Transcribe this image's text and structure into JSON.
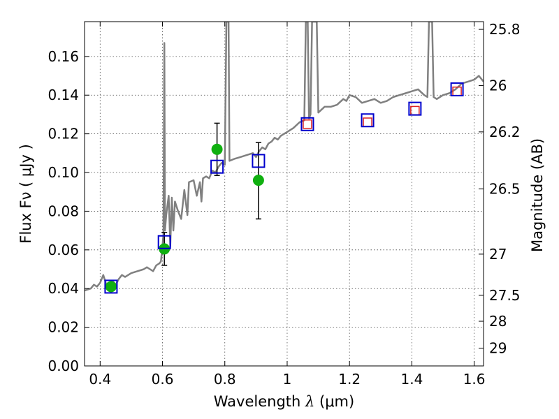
{
  "chart_data": {
    "type": "scatter",
    "xlabel": "Wavelength  λ (μm)",
    "ylabel": "Flux  Fν  ( μJy )",
    "y2label": "Magnitude (AB)",
    "xlim": [
      0.35,
      1.63
    ],
    "ylim": [
      0.0,
      0.178
    ],
    "grid": true,
    "x_ticks": [
      0.4,
      0.6,
      0.8,
      1.0,
      1.2,
      1.4,
      1.6
    ],
    "x_tick_labels": [
      "0.4",
      "0.6",
      "0.8",
      "1",
      "1.2",
      "1.4",
      "1.6"
    ],
    "y_ticks": [
      0.0,
      0.02,
      0.04,
      0.06,
      0.08,
      0.1,
      0.12,
      0.14,
      0.16
    ],
    "y_tick_labels": [
      "0.00",
      "0.02",
      "0.04",
      "0.06",
      "0.08",
      "0.10",
      "0.12",
      "0.14",
      "0.16"
    ],
    "y2_ticks": [
      {
        "label": "25.8",
        "flux": 0.174
      },
      {
        "label": "26",
        "flux": 0.145
      },
      {
        "label": "26.2",
        "flux": 0.121
      },
      {
        "label": "26.5",
        "flux": 0.0915
      },
      {
        "label": "27",
        "flux": 0.0578
      },
      {
        "label": "27.5",
        "flux": 0.0365
      },
      {
        "label": "28",
        "flux": 0.0231
      },
      {
        "label": "29",
        "flux": 0.0092
      }
    ],
    "model_spectrum": {
      "color": "#808080",
      "points": [
        [
          0.35,
          0.039
        ],
        [
          0.37,
          0.04
        ],
        [
          0.38,
          0.042
        ],
        [
          0.39,
          0.041
        ],
        [
          0.4,
          0.043
        ],
        [
          0.41,
          0.047
        ],
        [
          0.42,
          0.042
        ],
        [
          0.43,
          0.043
        ],
        [
          0.44,
          0.044
        ],
        [
          0.45,
          0.042
        ],
        [
          0.46,
          0.045
        ],
        [
          0.47,
          0.047
        ],
        [
          0.48,
          0.046
        ],
        [
          0.5,
          0.048
        ],
        [
          0.52,
          0.049
        ],
        [
          0.54,
          0.05
        ],
        [
          0.55,
          0.051
        ],
        [
          0.56,
          0.05
        ],
        [
          0.57,
          0.049
        ],
        [
          0.58,
          0.052
        ],
        [
          0.59,
          0.053
        ],
        [
          0.595,
          0.054
        ],
        [
          0.6,
          0.062
        ],
        [
          0.603,
          0.068
        ],
        [
          0.606,
          0.167
        ],
        [
          0.608,
          0.07
        ],
        [
          0.612,
          0.078
        ],
        [
          0.62,
          0.088
        ],
        [
          0.625,
          0.062
        ],
        [
          0.63,
          0.087
        ],
        [
          0.635,
          0.07
        ],
        [
          0.64,
          0.085
        ],
        [
          0.65,
          0.08
        ],
        [
          0.66,
          0.076
        ],
        [
          0.67,
          0.091
        ],
        [
          0.68,
          0.078
        ],
        [
          0.685,
          0.095
        ],
        [
          0.7,
          0.096
        ],
        [
          0.71,
          0.088
        ],
        [
          0.72,
          0.095
        ],
        [
          0.725,
          0.085
        ],
        [
          0.73,
          0.097
        ],
        [
          0.74,
          0.098
        ],
        [
          0.75,
          0.097
        ],
        [
          0.76,
          0.101
        ],
        [
          0.77,
          0.1
        ],
        [
          0.78,
          0.103
        ],
        [
          0.79,
          0.105
        ],
        [
          0.8,
          0.104
        ],
        [
          0.805,
          0.178
        ],
        [
          0.812,
          0.178
        ],
        [
          0.815,
          0.106
        ],
        [
          0.83,
          0.107
        ],
        [
          0.85,
          0.108
        ],
        [
          0.87,
          0.109
        ],
        [
          0.89,
          0.11
        ],
        [
          0.9,
          0.108
        ],
        [
          0.91,
          0.111
        ],
        [
          0.92,
          0.113
        ],
        [
          0.93,
          0.112
        ],
        [
          0.94,
          0.115
        ],
        [
          0.95,
          0.116
        ],
        [
          0.96,
          0.118
        ],
        [
          0.97,
          0.117
        ],
        [
          0.98,
          0.119
        ],
        [
          1.0,
          0.121
        ],
        [
          1.02,
          0.123
        ],
        [
          1.04,
          0.126
        ],
        [
          1.055,
          0.127
        ],
        [
          1.06,
          0.178
        ],
        [
          1.066,
          0.178
        ],
        [
          1.07,
          0.128
        ],
        [
          1.075,
          0.13
        ],
        [
          1.08,
          0.178
        ],
        [
          1.095,
          0.178
        ],
        [
          1.1,
          0.131
        ],
        [
          1.12,
          0.134
        ],
        [
          1.14,
          0.134
        ],
        [
          1.16,
          0.135
        ],
        [
          1.18,
          0.138
        ],
        [
          1.19,
          0.137
        ],
        [
          1.2,
          0.14
        ],
        [
          1.22,
          0.139
        ],
        [
          1.24,
          0.136
        ],
        [
          1.26,
          0.137
        ],
        [
          1.28,
          0.138
        ],
        [
          1.3,
          0.136
        ],
        [
          1.32,
          0.137
        ],
        [
          1.34,
          0.139
        ],
        [
          1.36,
          0.14
        ],
        [
          1.38,
          0.141
        ],
        [
          1.4,
          0.142
        ],
        [
          1.42,
          0.143
        ],
        [
          1.44,
          0.14
        ],
        [
          1.45,
          0.139
        ],
        [
          1.455,
          0.178
        ],
        [
          1.465,
          0.178
        ],
        [
          1.47,
          0.139
        ],
        [
          1.48,
          0.138
        ],
        [
          1.5,
          0.14
        ],
        [
          1.52,
          0.141
        ],
        [
          1.54,
          0.143
        ],
        [
          1.56,
          0.146
        ],
        [
          1.58,
          0.147
        ],
        [
          1.6,
          0.148
        ],
        [
          1.615,
          0.15
        ],
        [
          1.63,
          0.147
        ]
      ]
    },
    "blue_squares": [
      {
        "x": 0.435,
        "y": 0.041
      },
      {
        "x": 0.606,
        "y": 0.064
      },
      {
        "x": 0.775,
        "y": 0.103
      },
      {
        "x": 0.908,
        "y": 0.106
      },
      {
        "x": 1.065,
        "y": 0.125
      },
      {
        "x": 1.258,
        "y": 0.127
      },
      {
        "x": 1.41,
        "y": 0.133
      },
      {
        "x": 1.545,
        "y": 0.143
      }
    ],
    "red_squares": [
      {
        "x": 1.065,
        "y": 0.125
      },
      {
        "x": 1.258,
        "y": 0.126
      },
      {
        "x": 1.41,
        "y": 0.132
      },
      {
        "x": 1.545,
        "y": 0.142
      }
    ],
    "green_points": [
      {
        "x": 0.435,
        "y": 0.041,
        "yerr": [
          0.041,
          0.041
        ]
      },
      {
        "x": 0.606,
        "y": 0.0605,
        "yerr": [
          0.052,
          0.069
        ]
      },
      {
        "x": 0.775,
        "y": 0.112,
        "yerr": [
          0.0985,
          0.1255
        ]
      },
      {
        "x": 0.908,
        "y": 0.096,
        "yerr": [
          0.076,
          0.1155
        ]
      }
    ],
    "colors": {
      "spectrum": "#808080",
      "blue_square": "#0000cc",
      "red_square": "#dd2222",
      "green_point": "#10b010",
      "errorbar": "#000000"
    }
  }
}
